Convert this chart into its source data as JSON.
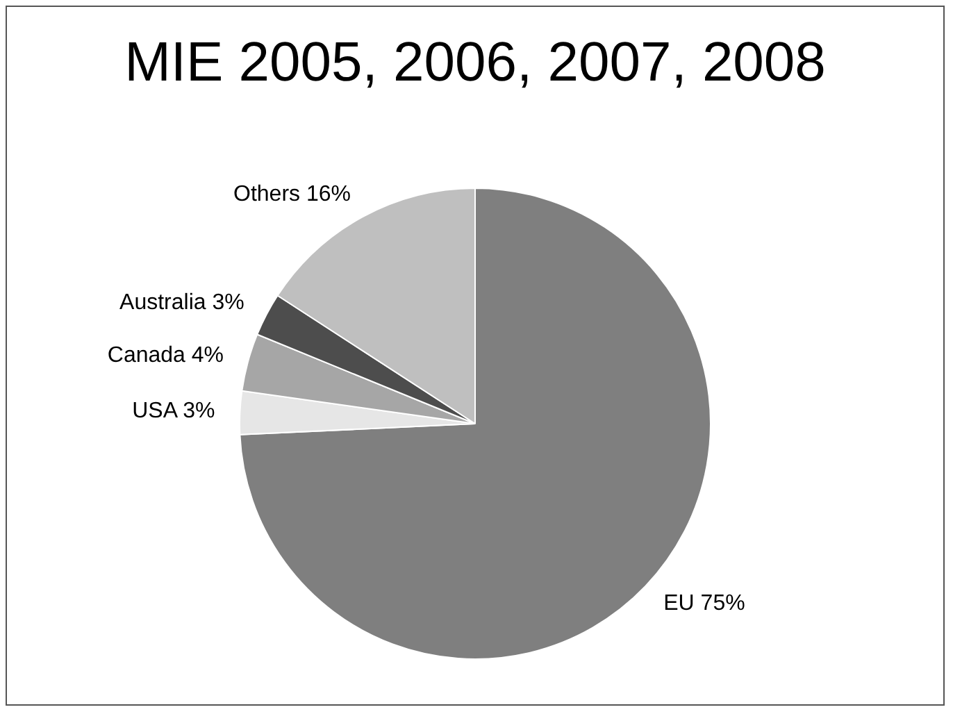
{
  "chart_data": {
    "type": "pie",
    "title": "MIE 2005, 2006, 2007, 2008",
    "categories": [
      "EU",
      "USA",
      "Canada",
      "Australia",
      "Others"
    ],
    "values": [
      75,
      3,
      4,
      3,
      16
    ],
    "value_labels": [
      "75%",
      "3%",
      "4%",
      "3%",
      "16%"
    ],
    "colors": [
      "#7f7f7f",
      "#e6e6e6",
      "#a6a6a6",
      "#4d4d4d",
      "#bfbfbf"
    ],
    "legend": false
  }
}
